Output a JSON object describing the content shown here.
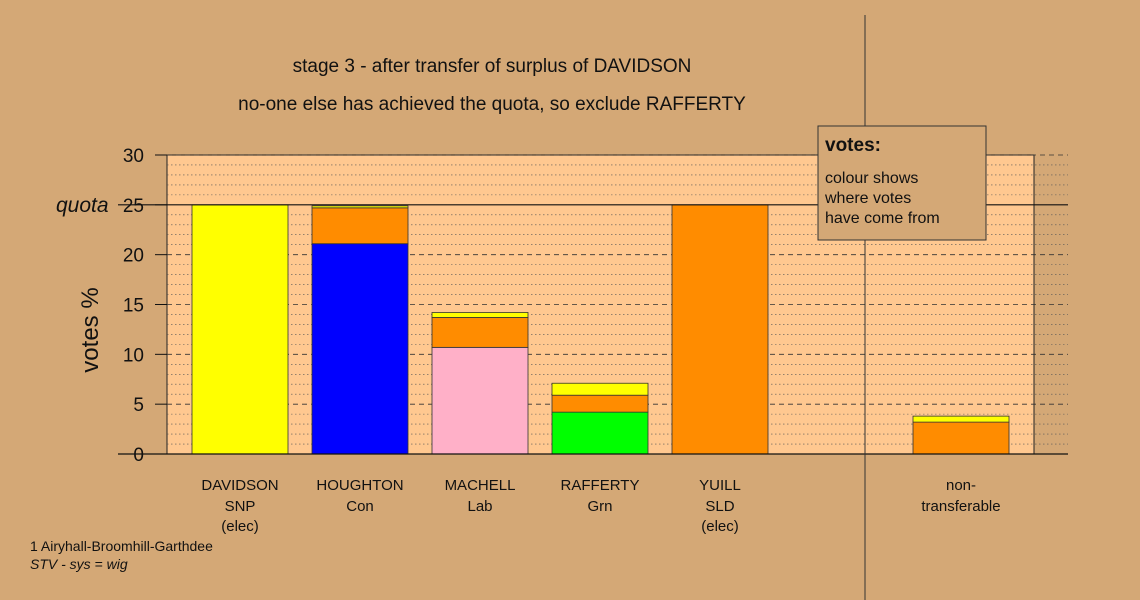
{
  "chart_data": {
    "type": "bar",
    "stacked": true,
    "title": "stage 3 - after transfer of surplus of DAVIDSON",
    "subtitle": "no-one else has achieved the quota, so exclude RAFFERTY",
    "ylabel": "votes %",
    "ylim": [
      0,
      30
    ],
    "yticks": [
      0,
      5,
      10,
      15,
      20,
      25,
      30
    ],
    "quota": 25,
    "quota_label": "quota",
    "legend": {
      "title": "votes:",
      "lines": [
        "colour shows",
        "where votes",
        "have come from"
      ],
      "placement": "top-right"
    },
    "candidates": [
      {
        "id": "davidson",
        "name": "DAVIDSON",
        "party": "SNP",
        "status": "(elec)",
        "segments": [
          {
            "value": 25.0,
            "color": "#ffff00"
          }
        ]
      },
      {
        "id": "houghton",
        "name": "HOUGHTON",
        "party": "Con",
        "status": "",
        "segments": [
          {
            "value": 21.1,
            "color": "#0000ff"
          },
          {
            "value": 3.6,
            "color": "#ff8c00"
          },
          {
            "value": 0.2,
            "color": "#ffff00"
          }
        ]
      },
      {
        "id": "machell",
        "name": "MACHELL",
        "party": "Lab",
        "status": "",
        "segments": [
          {
            "value": 10.7,
            "color": "#ffb0c8"
          },
          {
            "value": 3.0,
            "color": "#ff8c00"
          },
          {
            "value": 0.5,
            "color": "#ffff00"
          }
        ]
      },
      {
        "id": "rafferty",
        "name": "RAFFERTY",
        "party": "Grn",
        "status": "",
        "segments": [
          {
            "value": 4.2,
            "color": "#00ff00"
          },
          {
            "value": 1.7,
            "color": "#ff8c00"
          },
          {
            "value": 1.2,
            "color": "#ffff00"
          }
        ]
      },
      {
        "id": "yuill",
        "name": "YUILL",
        "party": "SLD",
        "status": "(elec)",
        "segments": [
          {
            "value": 25.0,
            "color": "#ff8c00"
          }
        ]
      }
    ],
    "nontransferable": {
      "label_line1": "non-",
      "label_line2": "transferable",
      "segments": [
        {
          "value": 3.2,
          "color": "#ff8c00"
        },
        {
          "value": 0.6,
          "color": "#ffff00"
        }
      ]
    }
  },
  "footer": {
    "ward": "1 Airyhall-Broomhill-Garthdee",
    "system": "STV - sys = wig"
  },
  "colors": {
    "background": "#d4a876",
    "plot_area": "#ffc890"
  }
}
